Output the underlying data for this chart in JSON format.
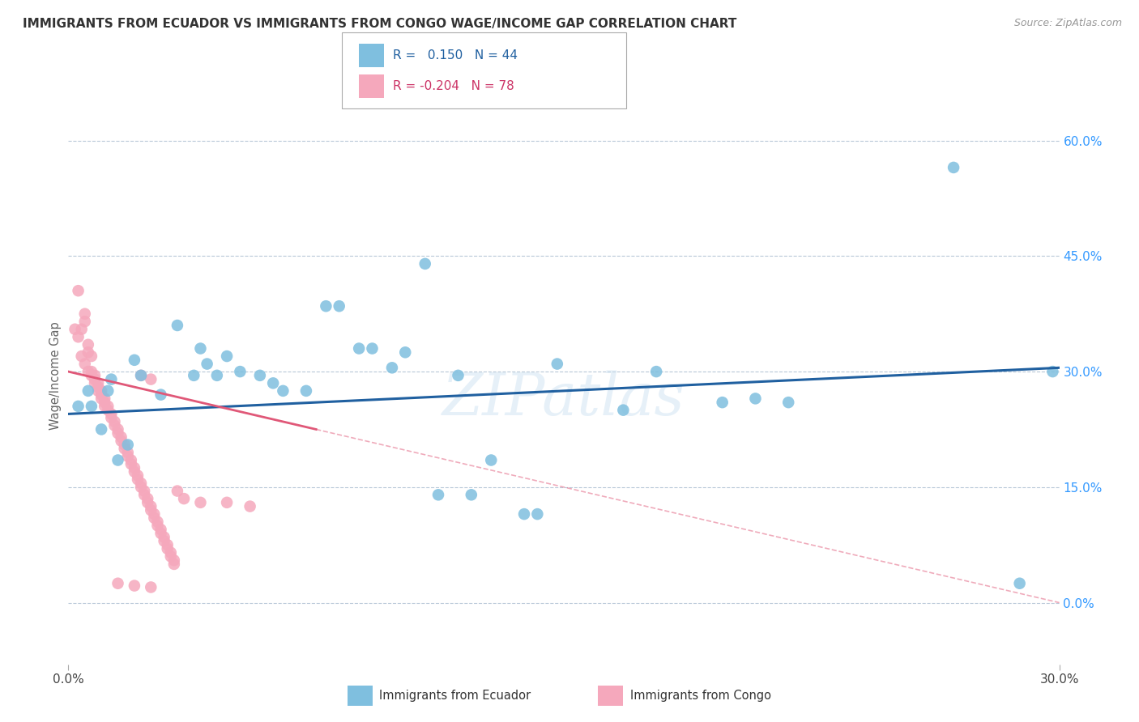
{
  "title": "IMMIGRANTS FROM ECUADOR VS IMMIGRANTS FROM CONGO WAGE/INCOME GAP CORRELATION CHART",
  "source": "Source: ZipAtlas.com",
  "ylabel": "Wage/Income Gap",
  "ytick_labels": [
    "60.0%",
    "45.0%",
    "30.0%",
    "15.0%",
    "0.0%"
  ],
  "ytick_values": [
    0.6,
    0.45,
    0.3,
    0.15,
    0.0
  ],
  "xlim": [
    0.0,
    0.3
  ],
  "ylim": [
    -0.08,
    0.67
  ],
  "ecuador_color": "#7fbfdf",
  "congo_color": "#f5a8bc",
  "ecuador_line_color": "#2060a0",
  "congo_line_color": "#e05878",
  "ecuador_scatter": [
    [
      0.003,
      0.255
    ],
    [
      0.006,
      0.275
    ],
    [
      0.007,
      0.255
    ],
    [
      0.01,
      0.225
    ],
    [
      0.012,
      0.275
    ],
    [
      0.013,
      0.29
    ],
    [
      0.015,
      0.185
    ],
    [
      0.018,
      0.205
    ],
    [
      0.02,
      0.315
    ],
    [
      0.022,
      0.295
    ],
    [
      0.028,
      0.27
    ],
    [
      0.033,
      0.36
    ],
    [
      0.038,
      0.295
    ],
    [
      0.04,
      0.33
    ],
    [
      0.042,
      0.31
    ],
    [
      0.045,
      0.295
    ],
    [
      0.048,
      0.32
    ],
    [
      0.052,
      0.3
    ],
    [
      0.058,
      0.295
    ],
    [
      0.062,
      0.285
    ],
    [
      0.065,
      0.275
    ],
    [
      0.072,
      0.275
    ],
    [
      0.078,
      0.385
    ],
    [
      0.082,
      0.385
    ],
    [
      0.088,
      0.33
    ],
    [
      0.092,
      0.33
    ],
    [
      0.098,
      0.305
    ],
    [
      0.102,
      0.325
    ],
    [
      0.108,
      0.44
    ],
    [
      0.112,
      0.14
    ],
    [
      0.118,
      0.295
    ],
    [
      0.122,
      0.14
    ],
    [
      0.128,
      0.185
    ],
    [
      0.138,
      0.115
    ],
    [
      0.142,
      0.115
    ],
    [
      0.148,
      0.31
    ],
    [
      0.168,
      0.25
    ],
    [
      0.178,
      0.3
    ],
    [
      0.198,
      0.26
    ],
    [
      0.208,
      0.265
    ],
    [
      0.218,
      0.26
    ],
    [
      0.268,
      0.565
    ],
    [
      0.288,
      0.025
    ],
    [
      0.298,
      0.3
    ]
  ],
  "congo_scatter": [
    [
      0.003,
      0.405
    ],
    [
      0.004,
      0.355
    ],
    [
      0.005,
      0.365
    ],
    [
      0.005,
      0.375
    ],
    [
      0.006,
      0.325
    ],
    [
      0.006,
      0.335
    ],
    [
      0.007,
      0.32
    ],
    [
      0.007,
      0.3
    ],
    [
      0.008,
      0.295
    ],
    [
      0.008,
      0.29
    ],
    [
      0.009,
      0.285
    ],
    [
      0.009,
      0.28
    ],
    [
      0.01,
      0.275
    ],
    [
      0.01,
      0.27
    ],
    [
      0.011,
      0.265
    ],
    [
      0.011,
      0.26
    ],
    [
      0.012,
      0.255
    ],
    [
      0.012,
      0.25
    ],
    [
      0.013,
      0.245
    ],
    [
      0.013,
      0.24
    ],
    [
      0.014,
      0.235
    ],
    [
      0.014,
      0.23
    ],
    [
      0.015,
      0.225
    ],
    [
      0.015,
      0.22
    ],
    [
      0.016,
      0.215
    ],
    [
      0.016,
      0.21
    ],
    [
      0.017,
      0.205
    ],
    [
      0.017,
      0.2
    ],
    [
      0.018,
      0.195
    ],
    [
      0.018,
      0.19
    ],
    [
      0.019,
      0.185
    ],
    [
      0.019,
      0.18
    ],
    [
      0.02,
      0.175
    ],
    [
      0.02,
      0.17
    ],
    [
      0.021,
      0.165
    ],
    [
      0.021,
      0.16
    ],
    [
      0.022,
      0.155
    ],
    [
      0.022,
      0.15
    ],
    [
      0.023,
      0.145
    ],
    [
      0.023,
      0.14
    ],
    [
      0.024,
      0.135
    ],
    [
      0.024,
      0.13
    ],
    [
      0.025,
      0.125
    ],
    [
      0.025,
      0.12
    ],
    [
      0.026,
      0.115
    ],
    [
      0.026,
      0.11
    ],
    [
      0.027,
      0.105
    ],
    [
      0.027,
      0.1
    ],
    [
      0.028,
      0.095
    ],
    [
      0.028,
      0.09
    ],
    [
      0.029,
      0.085
    ],
    [
      0.029,
      0.08
    ],
    [
      0.03,
      0.075
    ],
    [
      0.03,
      0.07
    ],
    [
      0.031,
      0.065
    ],
    [
      0.031,
      0.06
    ],
    [
      0.032,
      0.055
    ],
    [
      0.032,
      0.05
    ],
    [
      0.033,
      0.145
    ],
    [
      0.035,
      0.135
    ],
    [
      0.04,
      0.13
    ],
    [
      0.048,
      0.13
    ],
    [
      0.055,
      0.125
    ],
    [
      0.015,
      0.025
    ],
    [
      0.02,
      0.022
    ],
    [
      0.025,
      0.02
    ],
    [
      0.022,
      0.295
    ],
    [
      0.025,
      0.29
    ],
    [
      0.002,
      0.355
    ],
    [
      0.003,
      0.345
    ],
    [
      0.004,
      0.32
    ],
    [
      0.005,
      0.31
    ],
    [
      0.006,
      0.3
    ],
    [
      0.007,
      0.295
    ],
    [
      0.008,
      0.285
    ],
    [
      0.009,
      0.275
    ],
    [
      0.01,
      0.265
    ],
    [
      0.011,
      0.255
    ]
  ],
  "watermark": "ZIPatlas",
  "background_color": "#ffffff",
  "grid_color": "#b8c8d8"
}
